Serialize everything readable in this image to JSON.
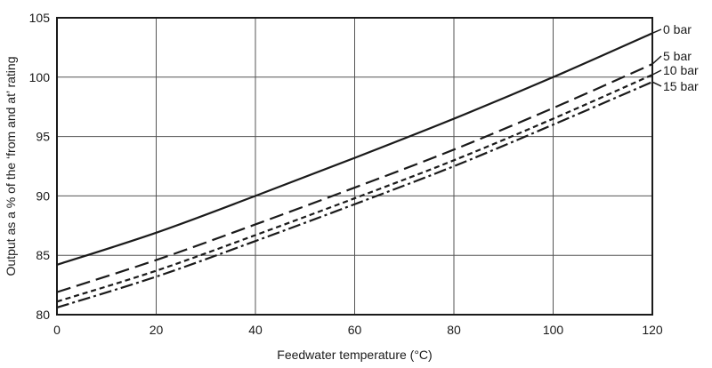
{
  "chart_data": {
    "type": "line",
    "xlabel": "Feedwater temperature (°C)",
    "ylabel": "Output as a % of the ‘from and at’ rating",
    "xlim": [
      0,
      120
    ],
    "ylim": [
      80,
      105
    ],
    "xticks": [
      0,
      20,
      40,
      60,
      80,
      100,
      120
    ],
    "yticks": [
      80,
      85,
      90,
      95,
      100,
      105
    ],
    "grid": true,
    "legend_placement": "right (labels at line ends)",
    "series": [
      {
        "name": "0 bar",
        "dash": "solid",
        "x": [
          0,
          20,
          40,
          60,
          80,
          100,
          120
        ],
        "values": [
          84.2,
          86.9,
          90.0,
          93.2,
          96.5,
          100.0,
          103.7
        ]
      },
      {
        "name": "5 bar",
        "dash": "long-dash",
        "x": [
          0,
          20,
          40,
          60,
          80,
          100,
          120
        ],
        "values": [
          81.9,
          84.6,
          87.6,
          90.7,
          93.9,
          97.4,
          101.1
        ]
      },
      {
        "name": "10 bar",
        "dash": "short-dash",
        "x": [
          0,
          20,
          40,
          60,
          80,
          100,
          120
        ],
        "values": [
          81.1,
          83.7,
          86.7,
          89.8,
          93.0,
          96.5,
          100.2
        ]
      },
      {
        "name": "15 bar",
        "dash": "dash-dot",
        "x": [
          0,
          20,
          40,
          60,
          80,
          100,
          120
        ],
        "values": [
          80.6,
          83.2,
          86.2,
          89.3,
          92.5,
          96.0,
          99.6
        ]
      }
    ]
  }
}
